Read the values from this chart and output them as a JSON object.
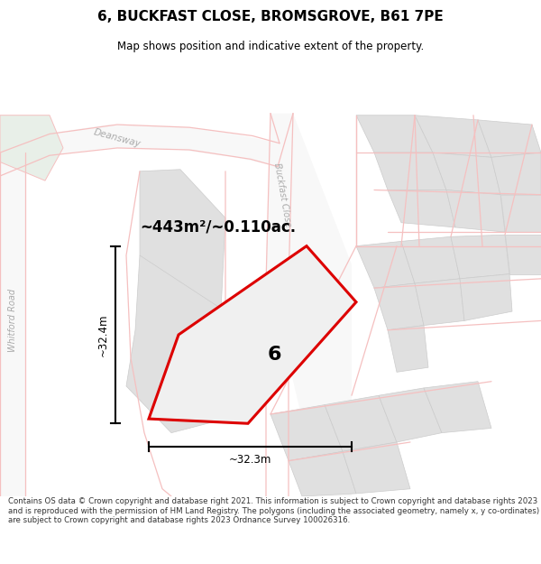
{
  "title": "6, BUCKFAST CLOSE, BROMSGROVE, B61 7PE",
  "subtitle": "Map shows position and indicative extent of the property.",
  "area_text": "~443m²/~0.110ac.",
  "dim_vertical": "~32.4m",
  "dim_horizontal": "~32.3m",
  "plot_number": "6",
  "footer": "Contains OS data © Crown copyright and database right 2021. This information is subject to Crown copyright and database rights 2023 and is reproduced with the permission of HM Land Registry. The polygons (including the associated geometry, namely x, y co-ordinates) are subject to Crown copyright and database rights 2023 Ordnance Survey 100026316.",
  "bg_color": "#ffffff",
  "map_bg": "#ffffff",
  "road_color": "#f5c0c0",
  "plot_edge": "#dd0000",
  "plot_fill": "#eeeeee",
  "neighbor_fill": "#e0e0e0",
  "neighbor_edge": "#cccccc",
  "green_fill": "#e8efe8",
  "title_color": "#000000",
  "footer_color": "#333333",
  "label_color": "#aaaaaa"
}
